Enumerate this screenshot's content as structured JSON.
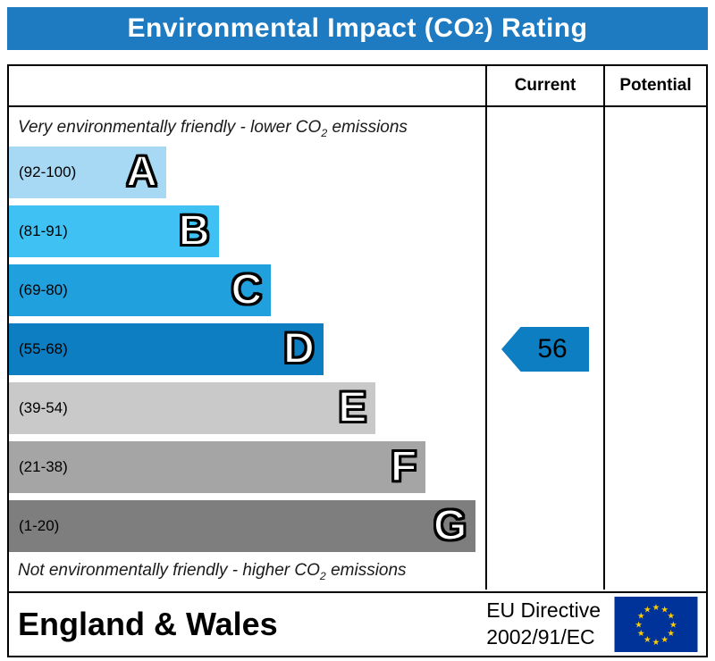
{
  "title": {
    "pre": "Environmental Impact (CO",
    "sub": "2",
    "post": ") Rating"
  },
  "header": {
    "current": "Current",
    "potential": "Potential"
  },
  "chart_data": {
    "type": "bar",
    "title": "Environmental Impact (CO2) Rating",
    "top_note": {
      "pre": "Very environmentally friendly - lower CO",
      "sub": "2",
      "post": " emissions"
    },
    "bottom_note": {
      "pre": "Not environmentally friendly - higher CO",
      "sub": "2",
      "post": " emissions"
    },
    "bands": [
      {
        "letter": "A",
        "range": "(92-100)",
        "color": "#a7d9f4",
        "width_pct": 33
      },
      {
        "letter": "B",
        "range": "(81-91)",
        "color": "#3fc2f3",
        "width_pct": 44
      },
      {
        "letter": "C",
        "range": "(69-80)",
        "color": "#20a0dd",
        "width_pct": 55
      },
      {
        "letter": "D",
        "range": "(55-68)",
        "color": "#0d7ec2",
        "width_pct": 66
      },
      {
        "letter": "E",
        "range": "(39-54)",
        "color": "#c9c9c9",
        "width_pct": 77
      },
      {
        "letter": "F",
        "range": "(21-38)",
        "color": "#a5a5a5",
        "width_pct": 87.5
      },
      {
        "letter": "G",
        "range": "(1-20)",
        "color": "#7e7e7e",
        "width_pct": 98
      }
    ],
    "current": {
      "value": "56",
      "band": "D",
      "arrow_color": "#0d7ec2"
    },
    "potential": {
      "value": ""
    }
  },
  "footer": {
    "region": "England & Wales",
    "directive": {
      "line1": "EU Directive",
      "line2": "2002/91/EC"
    },
    "eu_flag": {
      "background": "#003399",
      "star_color": "#ffcc00"
    }
  },
  "colors": {
    "title_bar": "#1e7bc1",
    "title_text": "#ffffff",
    "border": "#000000"
  }
}
